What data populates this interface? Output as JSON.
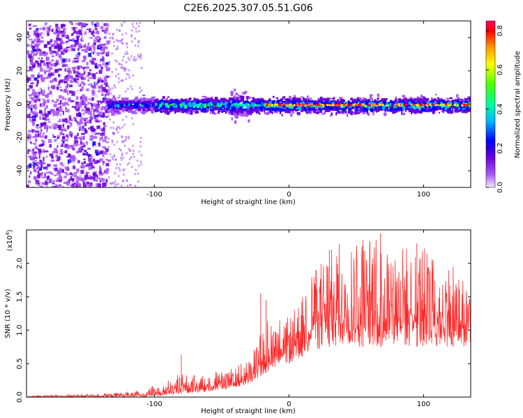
{
  "title": "C2E6.2025.307.05.51.G06",
  "colors": {
    "snr_line": "#ff2a2a",
    "colormap": [
      "#f3e8ff",
      "#a855f7",
      "#6a00d8",
      "#0000ff",
      "#00b7ff",
      "#00ff9c",
      "#4dff00",
      "#ffff00",
      "#ff9900",
      "#ff0000",
      "#ff0066"
    ]
  },
  "chart_data": [
    {
      "type": "heatmap",
      "name": "spectrogram",
      "xlabel": "Height of straight line (km)",
      "ylabel": "Frequency (Hz)",
      "xlim": [
        -195,
        135
      ],
      "ylim": [
        -50,
        50
      ],
      "xticks": [
        -100,
        0,
        100
      ],
      "yticks": [
        -40,
        -20,
        0,
        20,
        40
      ],
      "colorbar": {
        "label": "Normalized spectral amplitude",
        "range": [
          0.0,
          0.85
        ],
        "ticks": [
          "0.0",
          "0.2",
          "0.4",
          "0.6",
          "0.8"
        ]
      },
      "features": [
        {
          "x": [
            -195,
            -135
          ],
          "y": [
            -50,
            50
          ],
          "description_value": 0.1
        },
        {
          "x": [
            -135,
            135
          ],
          "y": [
            -8,
            8
          ],
          "description_value": 0.45
        },
        {
          "x": [
            -20,
            135
          ],
          "y": [
            -1,
            1
          ],
          "description_value": 0.8
        }
      ]
    },
    {
      "type": "line",
      "name": "snr",
      "xlabel": "Height of straight line (km)",
      "ylabel": "SNR (10 * v/v)",
      "multiplier": "(x10",
      "multiplier_exp": "4",
      "multiplier_close": ")",
      "xlim": [
        -195,
        135
      ],
      "ylim": [
        0,
        2.5
      ],
      "xticks": [
        -100,
        0,
        100
      ],
      "yticks": [
        "0.0",
        "0.5",
        "1.0",
        "1.5",
        "2.0"
      ],
      "envelope": {
        "x": [
          -195,
          -160,
          -130,
          -110,
          -95,
          -85,
          -80,
          -75,
          -60,
          -45,
          -30,
          -22,
          -18,
          -10,
          0,
          5,
          10,
          15,
          20,
          30,
          40,
          60,
          80,
          100,
          120,
          135
        ],
        "low": [
          0.0,
          0.0,
          0.0,
          0.0,
          0.02,
          0.04,
          0.05,
          0.06,
          0.08,
          0.12,
          0.18,
          0.3,
          0.35,
          0.45,
          0.5,
          0.55,
          0.6,
          0.65,
          0.7,
          0.75,
          0.75,
          0.75,
          0.75,
          0.75,
          0.75,
          0.75
        ],
        "high": [
          0.02,
          0.04,
          0.06,
          0.1,
          0.2,
          0.3,
          0.4,
          0.32,
          0.35,
          0.45,
          0.55,
          0.9,
          1.2,
          1.2,
          1.2,
          1.35,
          1.55,
          1.9,
          2.0,
          2.2,
          2.35,
          2.4,
          2.3,
          2.25,
          2.0,
          1.7
        ],
        "peak_x": [
          -80,
          -21,
          -17,
          30,
          55,
          68,
          95,
          122
        ],
        "peak_y": [
          0.63,
          1.55,
          1.45,
          2.2,
          2.35,
          2.45,
          2.3,
          1.95
        ]
      }
    }
  ]
}
